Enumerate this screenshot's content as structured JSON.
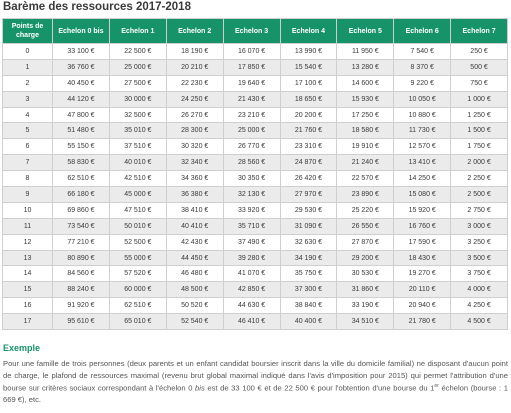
{
  "header": {
    "title": "Barème des ressources 2017-2018"
  },
  "table": {
    "columns": [
      "Points de charge",
      "Echelon 0 bis",
      "Echelon 1",
      "Echelon 2",
      "Echelon 3",
      "Echelon 4",
      "Echelon 5",
      "Echelon 6",
      "Echelon 7"
    ],
    "rows": [
      [
        "0",
        "33 100 €",
        "22 500 €",
        "18 190 €",
        "16 070 €",
        "13 990 €",
        "11 950 €",
        "7 540 €",
        "250 €"
      ],
      [
        "1",
        "36 760 €",
        "25 000 €",
        "20 210 €",
        "17 850 €",
        "15 540 €",
        "13 280 €",
        "8 370 €",
        "500 €"
      ],
      [
        "2",
        "40 450 €",
        "27 500 €",
        "22 230 €",
        "19 640 €",
        "17 100 €",
        "14 600 €",
        "9 220 €",
        "750 €"
      ],
      [
        "3",
        "44 120 €",
        "30 000 €",
        "24 250 €",
        "21 430 €",
        "18 650 €",
        "15 930 €",
        "10 050 €",
        "1 000 €"
      ],
      [
        "4",
        "47 800 €",
        "32 500 €",
        "26 270 €",
        "23 210 €",
        "20 200 €",
        "17 250 €",
        "10 880 €",
        "1 250 €"
      ],
      [
        "5",
        "51 480 €",
        "35 010 €",
        "28 300 €",
        "25 000 €",
        "21 760 €",
        "18 580 €",
        "11 730 €",
        "1 500 €"
      ],
      [
        "6",
        "55 150 €",
        "37 510 €",
        "30 320 €",
        "26 770 €",
        "23 310 €",
        "19 910 €",
        "12 570 €",
        "1 750 €"
      ],
      [
        "7",
        "58 830 €",
        "40 010 €",
        "32 340 €",
        "28 560 €",
        "24 870 €",
        "21 240 €",
        "13 410 €",
        "2 000 €"
      ],
      [
        "8",
        "62 510 €",
        "42 510 €",
        "34 360 €",
        "30 350 €",
        "26 420 €",
        "22 570 €",
        "14 250 €",
        "2 250 €"
      ],
      [
        "9",
        "66 180 €",
        "45 000 €",
        "36 380 €",
        "32 130 €",
        "27 970 €",
        "23 890 €",
        "15 080 €",
        "2 500 €"
      ],
      [
        "10",
        "69 860 €",
        "47 510 €",
        "38 410 €",
        "33 920 €",
        "29 530 €",
        "25 220 €",
        "15 920 €",
        "2 750 €"
      ],
      [
        "11",
        "73 540 €",
        "50 010 €",
        "40 410 €",
        "35 710 €",
        "31 090 €",
        "26 550 €",
        "16 760 €",
        "3 000 €"
      ],
      [
        "12",
        "77 210 €",
        "52 500 €",
        "42 430 €",
        "37 490 €",
        "32 630 €",
        "27 870 €",
        "17 590 €",
        "3 250 €"
      ],
      [
        "13",
        "80 890 €",
        "55 000 €",
        "44 450 €",
        "39 280 €",
        "34 190 €",
        "29 200 €",
        "18 430 €",
        "3 500 €"
      ],
      [
        "14",
        "84 560 €",
        "57 520 €",
        "46 480 €",
        "41 070 €",
        "35 750 €",
        "30 530 €",
        "19 270 €",
        "3 750 €"
      ],
      [
        "15",
        "88 240 €",
        "60 000 €",
        "48 500 €",
        "42 850 €",
        "37 300 €",
        "31 860 €",
        "20 110 €",
        "4 000 €"
      ],
      [
        "16",
        "91 920 €",
        "62 510 €",
        "50 520 €",
        "44 630 €",
        "38 840 €",
        "33 190 €",
        "20 940 €",
        "4 250 €"
      ],
      [
        "17",
        "95 610 €",
        "65 010 €",
        "52 540 €",
        "46 410 €",
        "40 400 €",
        "34 510 €",
        "21 780 €",
        "4 500 €"
      ]
    ]
  },
  "example": {
    "title": "Exemple",
    "text": [
      "Pour une famille de trois personnes (deux parents et un enfant candidat boursier inscrit dans la ville du domicile familial) ne disposant d'aucun point de charge, le plafond de ressources maximal (revenu brut global maximal indiqué dans l'avis d'imposition pour 2015) qui permet l'attribution d'une bourse sur critères sociaux correspondant à l'échelon 0 ",
      "bis",
      " est de 33 100 € et de 22 500 € pour l'obtention d'une bourse du 1",
      "er",
      " échelon (bourse : 1 669 €), etc."
    ]
  }
}
